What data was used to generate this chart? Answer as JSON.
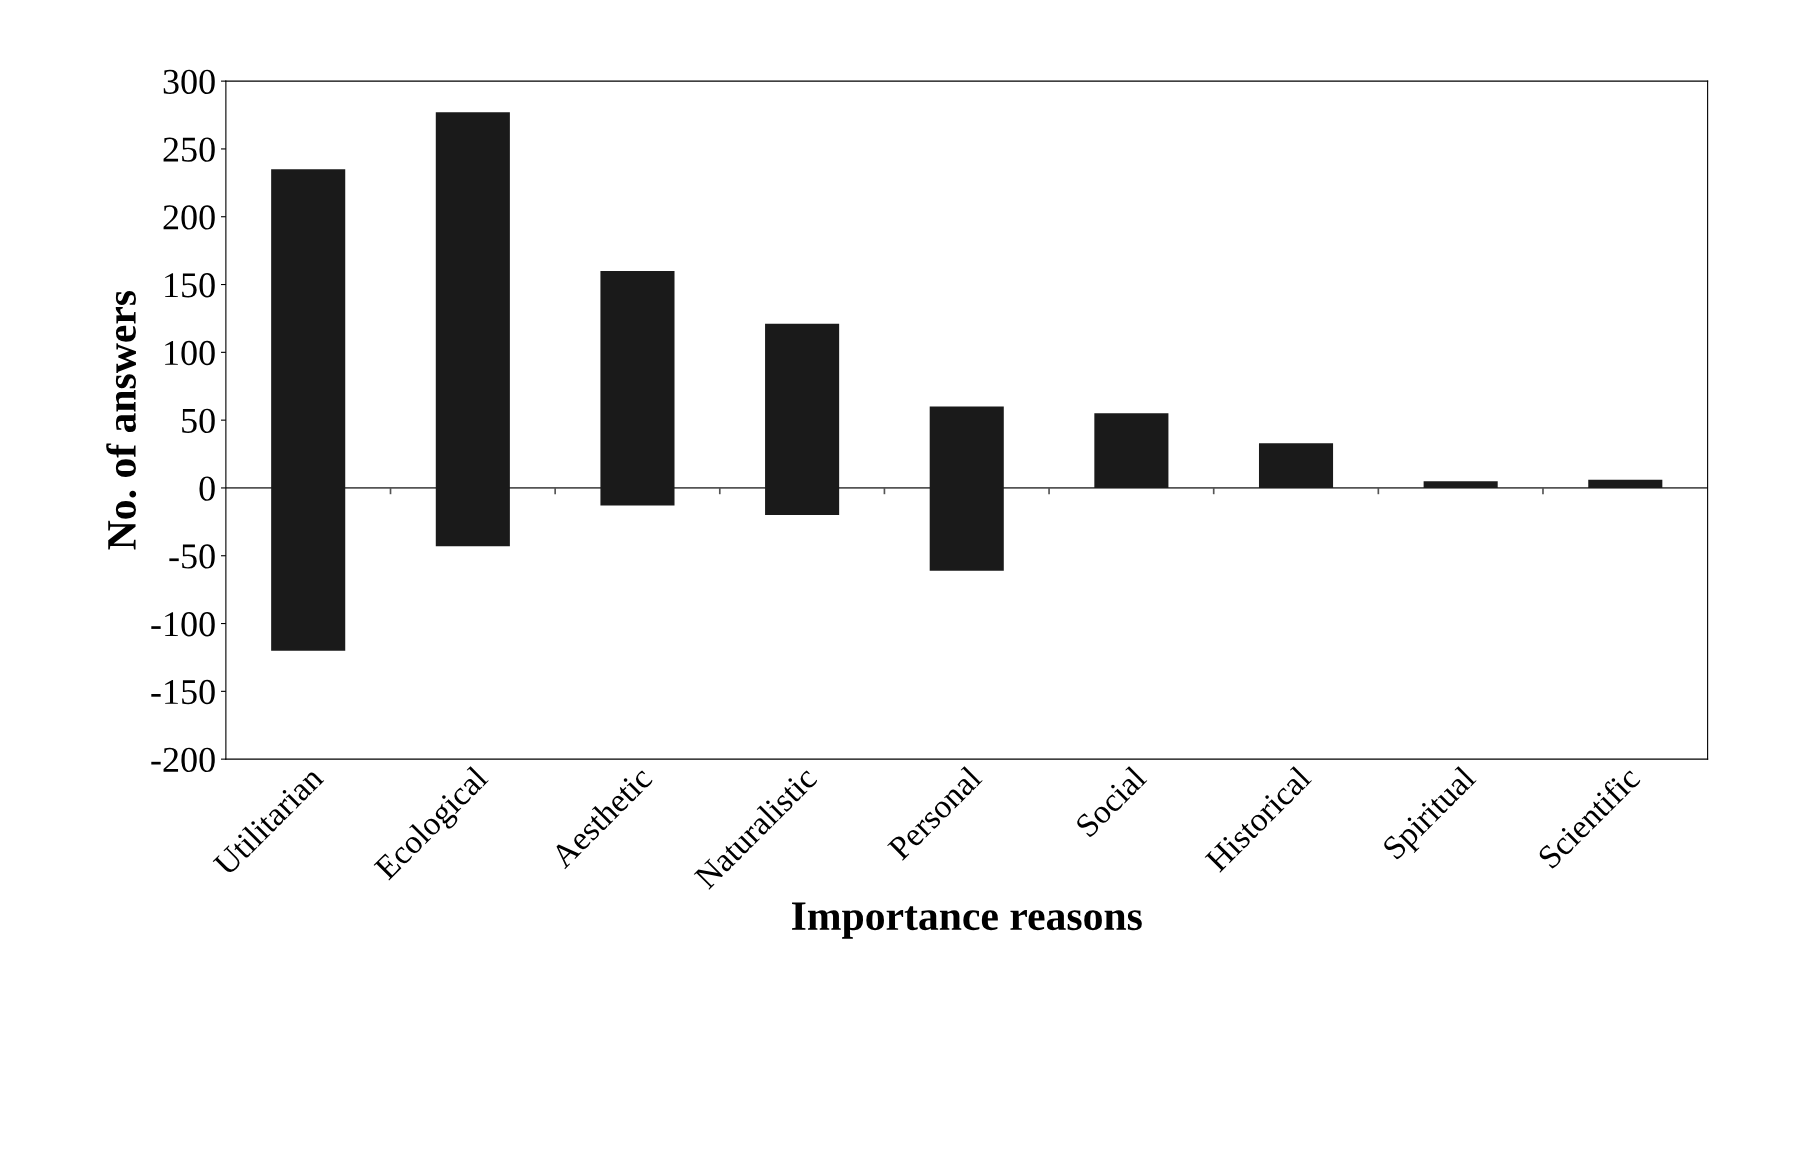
{
  "chart_data": {
    "type": "bar",
    "xlabel": "Importance reasons",
    "ylabel": "No. of answers",
    "categories": [
      "Utilitarian",
      "Ecological",
      "Aesthetic",
      "Naturalistic",
      "Personal",
      "Social",
      "Historical",
      "Spiritual",
      "Scientific"
    ],
    "base": [
      -120,
      -43,
      -13,
      -20,
      -61,
      0,
      0,
      0,
      0
    ],
    "values": [
      355,
      320,
      173,
      141,
      121,
      55,
      33,
      5,
      6
    ],
    "color": "#1a1a1a",
    "ylim": [
      -200,
      300
    ],
    "yticks": [
      -200,
      -150,
      -100,
      -50,
      0,
      50,
      100,
      150,
      200,
      250,
      300
    ],
    "ref_lines": [
      {
        "axis": "y",
        "value": 0,
        "color": "#555555"
      }
    ],
    "grid": false
  }
}
